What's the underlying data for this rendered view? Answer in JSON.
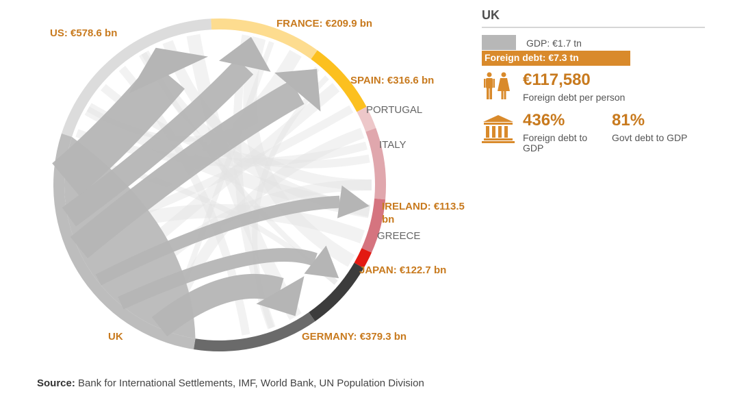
{
  "chart_data": {
    "type": "chord",
    "focus_country": "UK",
    "segments": [
      {
        "name": "US",
        "label": "US: €578.6 bn",
        "value": 578.6,
        "color": "#dcdcdc",
        "highlight": true
      },
      {
        "name": "FRANCE",
        "label": "FRANCE: €209.9 bn",
        "value": 209.9,
        "color": "#fddc8f",
        "highlight": true
      },
      {
        "name": "SPAIN",
        "label": "SPAIN: €316.6 bn",
        "value": 316.6,
        "color": "#fcc01f",
        "highlight": true
      },
      {
        "name": "PORTUGAL",
        "label": "PORTUGAL",
        "value": null,
        "color": "#edc7c9",
        "highlight": false
      },
      {
        "name": "ITALY",
        "label": "ITALY",
        "value": null,
        "color": "#e0a7ad",
        "highlight": false
      },
      {
        "name": "IRELAND",
        "label": "IRELAND: €113.5 bn",
        "value": 113.5,
        "color": "#d5747f",
        "highlight": true
      },
      {
        "name": "GREECE",
        "label": "GREECE",
        "value": null,
        "color": "#e31a12",
        "highlight": false
      },
      {
        "name": "JAPAN",
        "label": "JAPAN: €122.7 bn",
        "value": 122.7,
        "color": "#3c3c3c",
        "highlight": true
      },
      {
        "name": "GERMANY",
        "label": "GERMANY: €379.3 bn",
        "value": 379.3,
        "color": "#6a6a6a",
        "highlight": true
      },
      {
        "name": "UK",
        "label": "UK",
        "value": null,
        "color": "#bdbdbd",
        "highlight": true
      }
    ],
    "flows_from": "UK",
    "flows_to": [
      "US",
      "FRANCE",
      "SPAIN",
      "IRELAND",
      "JAPAN",
      "GERMANY"
    ]
  },
  "panel": {
    "title": "UK",
    "gdp_label": "GDP: €1.7 tn",
    "debt_label": "Foreign debt: €7.3 tn",
    "gdp_fraction_of_debt": 0.23,
    "per_person_value": "€117,580",
    "per_person_label": "Foreign debt per person",
    "debt_gdp_value": "436%",
    "debt_gdp_label": "Foreign debt to GDP",
    "govt_gdp_value": "81%",
    "govt_gdp_label": "Govt debt to GDP",
    "people_icon": "people-icon",
    "bank_icon": "bank-icon"
  },
  "source": {
    "prefix": "Source:",
    "text": "Bank for International Settlements, IMF, World Bank, UN Population Division"
  },
  "colors": {
    "accent": "#c87a1e",
    "debt_bar": "#d98a2b",
    "gdp_bar": "#b7b7b7",
    "flow": "#b5b5b5"
  }
}
